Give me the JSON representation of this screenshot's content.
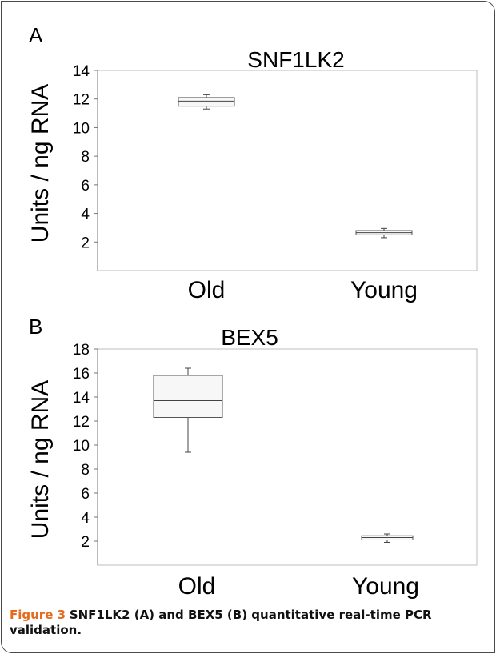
{
  "chart_data": [
    {
      "type": "box",
      "panel_label": "A",
      "title": "SNF1LK2",
      "xlabel": "",
      "ylabel": "Units / ng RNA",
      "ylim": [
        0,
        14
      ],
      "yticks": [
        2,
        4,
        6,
        8,
        10,
        12,
        14
      ],
      "grid": false,
      "categories": [
        "Old",
        "Young"
      ],
      "boxes": [
        {
          "category": "Old",
          "min": 11.3,
          "q1": 11.5,
          "median": 11.85,
          "q3": 12.1,
          "max": 12.3
        },
        {
          "category": "Young",
          "min": 2.3,
          "q1": 2.5,
          "median": 2.65,
          "q3": 2.8,
          "max": 2.95
        }
      ]
    },
    {
      "type": "box",
      "panel_label": "B",
      "title": "BEX5",
      "xlabel": "",
      "ylabel": "Units / ng RNA",
      "ylim": [
        0,
        18
      ],
      "yticks": [
        2,
        4,
        6,
        8,
        10,
        12,
        14,
        16,
        18
      ],
      "grid": false,
      "categories": [
        "Old",
        "Young"
      ],
      "boxes": [
        {
          "category": "Old",
          "min": 9.4,
          "q1": 12.3,
          "median": 13.7,
          "q3": 15.8,
          "max": 16.4
        },
        {
          "category": "Young",
          "min": 1.9,
          "q1": 2.1,
          "median": 2.3,
          "q3": 2.45,
          "max": 2.6
        }
      ]
    }
  ],
  "caption": {
    "label": "Figure 3",
    "text": "SNF1LK2 (A) and BEX5 (B) quantitative real-time PCR validation."
  }
}
